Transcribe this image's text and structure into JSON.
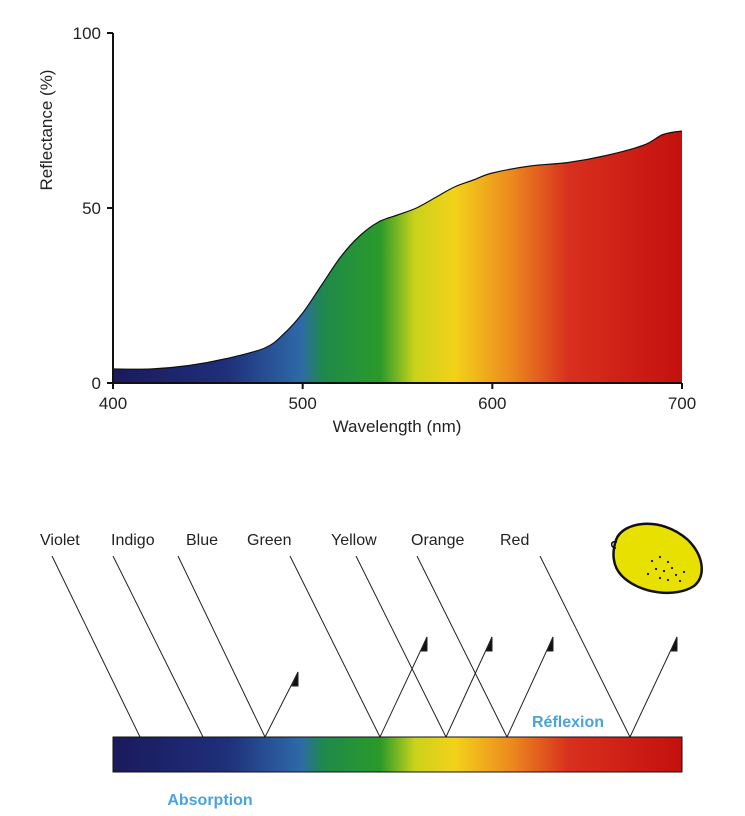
{
  "chart_data": {
    "type": "area",
    "xlabel": "Wavelength (nm)",
    "ylabel": "Reflectance (%)",
    "xlim": [
      400,
      700
    ],
    "ylim": [
      0,
      100
    ],
    "x_ticks": [
      "400",
      "500",
      "600",
      "700"
    ],
    "y_ticks": [
      "0",
      "50",
      "100"
    ],
    "grid": false,
    "series": [
      {
        "x": [
          400,
          420,
          440,
          460,
          480,
          490,
          500,
          510,
          520,
          530,
          540,
          550,
          560,
          570,
          580,
          590,
          600,
          620,
          640,
          660,
          680,
          690,
          700
        ],
        "values": [
          4,
          4,
          5,
          7,
          10,
          14,
          20,
          28,
          36,
          42,
          46,
          48,
          50,
          53,
          56,
          58,
          60,
          62,
          63,
          65,
          68,
          71,
          72
        ]
      }
    ]
  },
  "diagram": {
    "colors": [
      "Violet",
      "Indigo",
      "Blue",
      "Green",
      "Yellow",
      "Orange",
      "Red"
    ],
    "reflexion_label": "Réflexion",
    "absorption_label": "Absorption",
    "note_color": "#4aa3df",
    "lemon_color": "#e8e000"
  }
}
